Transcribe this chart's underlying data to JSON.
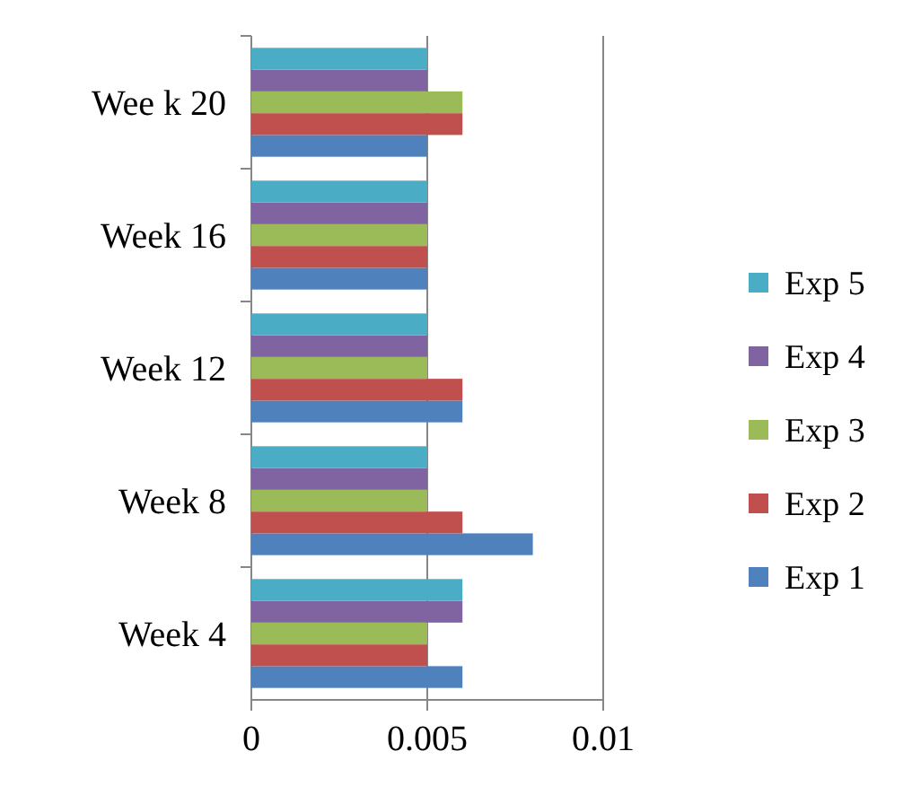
{
  "chart_data": {
    "type": "bar",
    "orientation": "horizontal",
    "categories": [
      "Wee k 20",
      "Week 16",
      "Week 12",
      "Week 8",
      "Week 4"
    ],
    "series": [
      {
        "name": "Exp 1",
        "color": "#4f81bd",
        "values": [
          0.005,
          0.005,
          0.006,
          0.008,
          0.006
        ]
      },
      {
        "name": "Exp 2",
        "color": "#c0504d",
        "values": [
          0.006,
          0.005,
          0.006,
          0.006,
          0.005
        ]
      },
      {
        "name": "Exp 3",
        "color": "#9bbb59",
        "values": [
          0.006,
          0.005,
          0.005,
          0.005,
          0.005
        ]
      },
      {
        "name": "Exp 4",
        "color": "#8064a2",
        "values": [
          0.005,
          0.005,
          0.005,
          0.005,
          0.006
        ]
      },
      {
        "name": "Exp 5",
        "color": "#4bacc6",
        "values": [
          0.005,
          0.005,
          0.005,
          0.005,
          0.006
        ]
      }
    ],
    "xlim": [
      0,
      0.01
    ],
    "xticks": [
      0,
      0.005,
      0.01
    ],
    "grid": "x",
    "legend": "right"
  }
}
